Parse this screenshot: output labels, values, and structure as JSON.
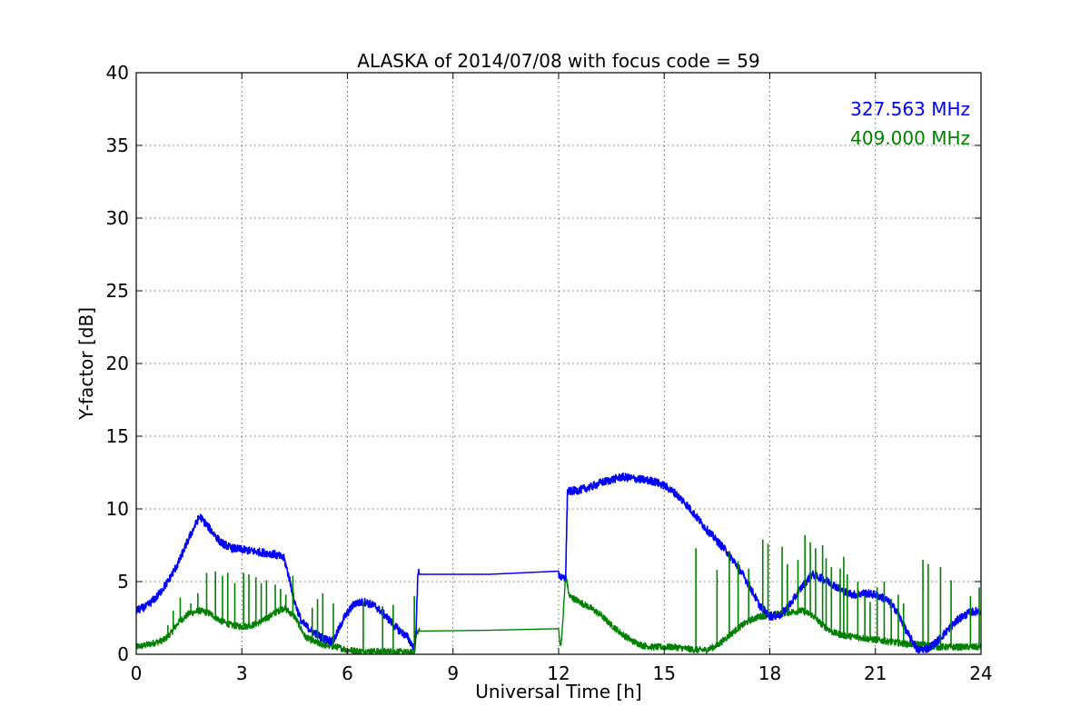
{
  "chart_data": {
    "type": "line",
    "title": "ALASKA of 2014/07/08 with focus code = 59",
    "xlabel": "Universal Time [h]",
    "ylabel": "Y-factor [dB]",
    "xlim": [
      0,
      24
    ],
    "ylim": [
      0,
      40
    ],
    "xticks": [
      0,
      3,
      6,
      9,
      12,
      15,
      18,
      21,
      24
    ],
    "yticks": [
      0,
      5,
      10,
      15,
      20,
      25,
      30,
      35,
      40
    ],
    "grid": true,
    "legend_position": "top-right",
    "series": [
      {
        "name": "327.563 MHz",
        "color": "#0000ff",
        "x": [
          0,
          0.3,
          0.6,
          0.9,
          1.2,
          1.5,
          1.8,
          2.1,
          2.4,
          2.7,
          3.0,
          3.3,
          3.6,
          3.9,
          4.2,
          4.35,
          4.5,
          4.7,
          5.0,
          5.3,
          5.6,
          5.9,
          6.2,
          6.5,
          6.8,
          7.1,
          7.4,
          7.7,
          7.9,
          7.95,
          8.0,
          8.05,
          12.0,
          12.1,
          12.2,
          12.25,
          12.3,
          12.6,
          12.9,
          13.2,
          13.5,
          13.8,
          14.1,
          14.4,
          14.7,
          15.0,
          15.3,
          15.6,
          15.9,
          16.2,
          16.5,
          16.8,
          17.1,
          17.4,
          17.7,
          18.0,
          18.3,
          18.6,
          18.9,
          19.2,
          19.5,
          19.8,
          20.1,
          20.4,
          20.7,
          21.0,
          21.3,
          21.6,
          21.9,
          22.2,
          22.5,
          22.8,
          23.1,
          23.4,
          23.7,
          24.0
        ],
        "y": [
          3.0,
          3.3,
          4.0,
          5.0,
          6.3,
          8.0,
          9.5,
          8.6,
          7.7,
          7.3,
          7.2,
          7.1,
          7.0,
          6.9,
          6.6,
          5.2,
          3.6,
          2.2,
          1.6,
          1.1,
          0.9,
          2.5,
          3.5,
          3.6,
          3.3,
          2.6,
          1.8,
          1.2,
          0.4,
          1.5,
          5.7,
          5.5,
          5.5,
          5.2,
          5.3,
          11.2,
          11.2,
          11.3,
          11.5,
          11.8,
          12.0,
          12.2,
          12.1,
          12.0,
          11.9,
          11.6,
          11.1,
          10.4,
          9.5,
          8.6,
          7.8,
          7.0,
          6.0,
          4.8,
          3.4,
          2.6,
          2.7,
          3.5,
          4.6,
          5.5,
          5.2,
          4.8,
          4.3,
          4.1,
          4.2,
          4.1,
          3.8,
          3.0,
          1.5,
          0.3,
          0.4,
          1.0,
          1.8,
          2.5,
          2.9,
          3.0
        ]
      },
      {
        "name": "409.000 MHz",
        "color": "#008000",
        "x": [
          0,
          0.4,
          0.8,
          1.0,
          1.2,
          1.5,
          1.8,
          2.1,
          2.4,
          2.7,
          3.0,
          3.3,
          3.6,
          3.9,
          4.2,
          4.5,
          4.8,
          5.1,
          5.4,
          5.7,
          6.0,
          6.4,
          6.8,
          7.2,
          7.6,
          7.9,
          7.95,
          8.0,
          8.05,
          12.0,
          12.05,
          12.1,
          12.2,
          12.3,
          12.6,
          12.9,
          13.2,
          13.5,
          13.8,
          14.1,
          14.4,
          14.7,
          15.0,
          15.3,
          15.6,
          15.9,
          16.2,
          16.5,
          16.8,
          17.1,
          17.4,
          17.7,
          18.0,
          18.3,
          18.6,
          18.9,
          19.2,
          19.5,
          19.8,
          20.1,
          20.4,
          20.7,
          21.0,
          21.3,
          21.6,
          21.9,
          22.2,
          22.5,
          22.8,
          23.1,
          23.4,
          23.7,
          24.0
        ],
        "y": [
          0.5,
          0.7,
          1.0,
          1.5,
          2.2,
          2.8,
          3.0,
          2.8,
          2.3,
          2.0,
          1.9,
          2.0,
          2.3,
          2.8,
          3.2,
          2.6,
          1.2,
          0.8,
          0.6,
          0.5,
          0.3,
          0.2,
          0.2,
          0.2,
          0.15,
          0.1,
          1.2,
          1.6,
          1.6,
          1.7,
          0.5,
          1.5,
          5.5,
          4.0,
          3.6,
          3.2,
          2.7,
          2.0,
          1.4,
          0.9,
          0.6,
          0.5,
          0.5,
          0.5,
          0.4,
          0.3,
          0.3,
          0.6,
          1.2,
          1.8,
          2.3,
          2.6,
          2.7,
          2.8,
          2.9,
          3.0,
          2.7,
          2.0,
          1.5,
          1.3,
          1.2,
          1.1,
          1.0,
          0.9,
          0.8,
          0.7,
          0.7,
          0.6,
          0.5,
          0.5,
          0.5,
          0.5,
          0.5
        ]
      }
    ],
    "spikes": [
      {
        "series": 1,
        "x": [
          0.9,
          1.05,
          1.25,
          1.55,
          1.75,
          2.0,
          2.25,
          2.45,
          2.6,
          2.8,
          3.05,
          3.2,
          3.4,
          3.55,
          3.7,
          3.95,
          4.1,
          4.25,
          4.45,
          5.0,
          5.15,
          5.3,
          5.6,
          6.45,
          7.0,
          7.3,
          7.9,
          15.9,
          16.5,
          16.85,
          17.1,
          17.4,
          17.8,
          17.95,
          18.35,
          18.5,
          18.8,
          19.0,
          19.15,
          19.3,
          19.5,
          19.6,
          19.75,
          20.0,
          20.1,
          20.2,
          20.5,
          20.7,
          20.85,
          21.05,
          21.25,
          21.45,
          21.65,
          21.8,
          22.35,
          22.5,
          22.85,
          23.15,
          23.7,
          23.95
        ],
        "y": [
          2.0,
          3.0,
          3.9,
          3.5,
          4.2,
          5.6,
          5.7,
          5.4,
          5.6,
          4.9,
          5.6,
          5.5,
          5.3,
          4.9,
          5.1,
          4.8,
          4.5,
          4.1,
          5.4,
          3.2,
          3.8,
          4.2,
          3.5,
          3.6,
          3.3,
          3.4,
          4.0,
          7.3,
          5.8,
          7.1,
          6.4,
          5.9,
          7.9,
          7.6,
          7.4,
          6.2,
          6.5,
          8.2,
          7.7,
          7.3,
          7.5,
          6.6,
          6.0,
          5.9,
          6.7,
          5.5,
          5.0,
          4.0,
          3.6,
          4.6,
          5.0,
          3.8,
          4.1,
          3.5,
          6.5,
          6.2,
          6.0,
          5.1,
          4.0,
          4.6
        ]
      }
    ]
  }
}
